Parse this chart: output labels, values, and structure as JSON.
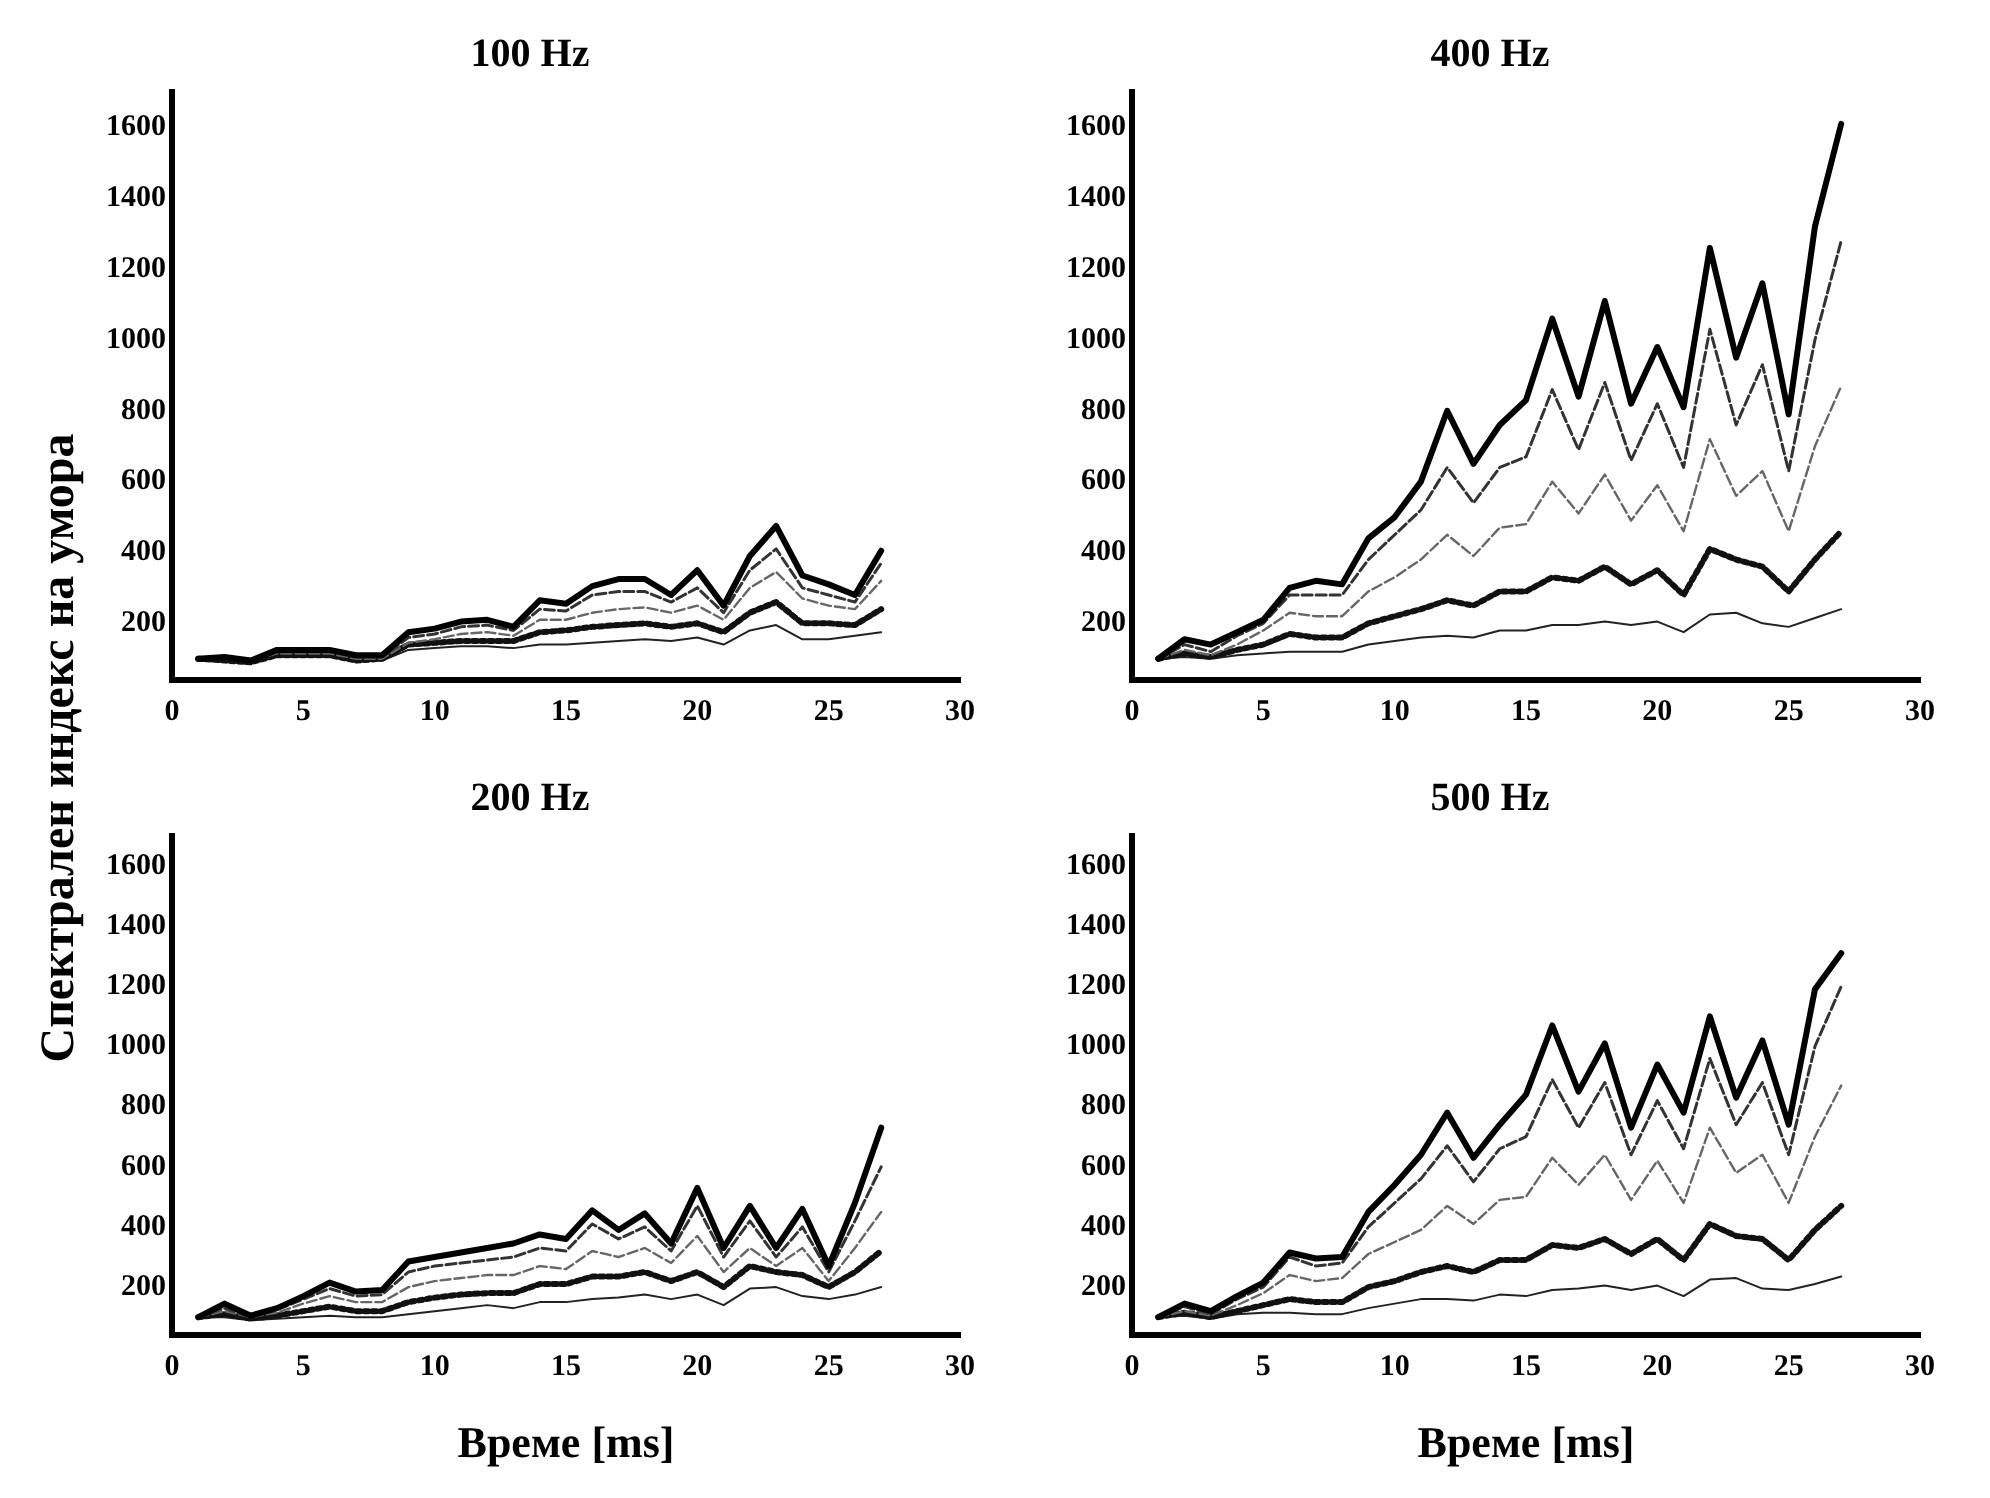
{
  "chart_data": [
    {
      "type": "line",
      "title": "100 Hz",
      "ylabel": "Спектрален индекс на умора",
      "x": [
        1,
        2,
        3,
        4,
        5,
        6,
        7,
        8,
        9,
        10,
        11,
        12,
        13,
        14,
        15,
        16,
        17,
        18,
        19,
        20,
        21,
        22,
        23,
        24,
        25,
        26,
        27
      ],
      "xlim": [
        0,
        30
      ],
      "xticks": [
        0,
        5,
        10,
        15,
        20,
        25,
        30
      ],
      "ylim": [
        40,
        1700
      ],
      "yticks": [
        200,
        400,
        600,
        800,
        1000,
        1200,
        1400,
        1600
      ],
      "grid": false,
      "series": [
        {
          "color": "#000000",
          "line_style": "solid",
          "values": [
            100,
            105,
            95,
            125,
            125,
            125,
            110,
            110,
            175,
            185,
            205,
            210,
            190,
            265,
            255,
            305,
            325,
            325,
            280,
            350,
            250,
            390,
            475,
            335,
            310,
            280,
            405
          ]
        },
        {
          "color": "#333333",
          "line_style": "dashed",
          "values": [
            100,
            100,
            95,
            120,
            120,
            120,
            105,
            105,
            160,
            170,
            190,
            195,
            180,
            240,
            235,
            280,
            290,
            290,
            260,
            300,
            230,
            350,
            410,
            300,
            280,
            260,
            370
          ]
        },
        {
          "color": "#666666",
          "line_style": "dashed",
          "values": [
            100,
            100,
            95,
            115,
            115,
            115,
            100,
            100,
            145,
            155,
            170,
            175,
            165,
            210,
            210,
            230,
            240,
            245,
            230,
            250,
            210,
            300,
            345,
            270,
            250,
            240,
            320
          ]
        },
        {
          "color": "#111111",
          "line_style": "dotted",
          "values": [
            100,
            95,
            90,
            110,
            110,
            110,
            95,
            100,
            140,
            145,
            150,
            150,
            150,
            175,
            180,
            190,
            195,
            200,
            190,
            200,
            175,
            230,
            260,
            200,
            200,
            195,
            240
          ]
        },
        {
          "color": "#222222",
          "line_style": "solid",
          "values": [
            100,
            95,
            90,
            105,
            105,
            105,
            95,
            95,
            125,
            130,
            135,
            135,
            130,
            140,
            140,
            145,
            150,
            155,
            150,
            160,
            140,
            180,
            195,
            155,
            155,
            165,
            175
          ]
        }
      ]
    },
    {
      "type": "line",
      "title": "400 Hz",
      "x": [
        1,
        2,
        3,
        4,
        5,
        6,
        7,
        8,
        9,
        10,
        11,
        12,
        13,
        14,
        15,
        16,
        17,
        18,
        19,
        20,
        21,
        22,
        23,
        24,
        25,
        26,
        27
      ],
      "xlim": [
        0,
        30
      ],
      "xticks": [
        0,
        5,
        10,
        15,
        20,
        25,
        30
      ],
      "ylim": [
        40,
        1700
      ],
      "yticks": [
        200,
        400,
        600,
        800,
        1000,
        1200,
        1400,
        1600
      ],
      "grid": false,
      "series": [
        {
          "color": "#000000",
          "line_style": "solid",
          "values": [
            100,
            155,
            140,
            175,
            210,
            300,
            320,
            310,
            440,
            500,
            600,
            800,
            650,
            760,
            830,
            1060,
            840,
            1110,
            820,
            980,
            810,
            1260,
            950,
            1160,
            790,
            1320,
            1610
          ]
        },
        {
          "color": "#333333",
          "line_style": "dashed",
          "values": [
            100,
            140,
            120,
            165,
            200,
            280,
            280,
            280,
            380,
            450,
            520,
            640,
            540,
            640,
            670,
            860,
            690,
            880,
            660,
            820,
            640,
            1030,
            760,
            930,
            630,
            1000,
            1280
          ]
        },
        {
          "color": "#666666",
          "line_style": "dashed",
          "values": [
            100,
            125,
            110,
            140,
            180,
            230,
            220,
            220,
            290,
            330,
            380,
            450,
            390,
            470,
            480,
            600,
            510,
            620,
            490,
            590,
            460,
            720,
            560,
            630,
            460,
            700,
            870
          ]
        },
        {
          "color": "#111111",
          "line_style": "dotted",
          "values": [
            100,
            115,
            105,
            125,
            140,
            170,
            160,
            160,
            200,
            220,
            240,
            265,
            250,
            290,
            290,
            330,
            320,
            360,
            310,
            350,
            280,
            410,
            380,
            360,
            290,
            380,
            460
          ]
        },
        {
          "color": "#222222",
          "line_style": "solid",
          "values": [
            100,
            105,
            100,
            110,
            115,
            120,
            120,
            120,
            140,
            150,
            160,
            165,
            160,
            180,
            180,
            195,
            195,
            205,
            195,
            205,
            175,
            225,
            230,
            200,
            190,
            215,
            240
          ]
        }
      ]
    },
    {
      "type": "line",
      "title": "200 Hz",
      "xlabel": "Време [ms]",
      "x": [
        1,
        2,
        3,
        4,
        5,
        6,
        7,
        8,
        9,
        10,
        11,
        12,
        13,
        14,
        15,
        16,
        17,
        18,
        19,
        20,
        21,
        22,
        23,
        24,
        25,
        26,
        27
      ],
      "xlim": [
        0,
        30
      ],
      "xticks": [
        0,
        5,
        10,
        15,
        20,
        25,
        30
      ],
      "ylim": [
        40,
        1700
      ],
      "yticks": [
        200,
        400,
        600,
        800,
        1000,
        1200,
        1400,
        1600
      ],
      "grid": false,
      "series": [
        {
          "color": "#000000",
          "line_style": "solid",
          "values": [
            100,
            145,
            105,
            130,
            170,
            215,
            185,
            190,
            285,
            300,
            315,
            330,
            345,
            375,
            360,
            455,
            390,
            445,
            345,
            530,
            330,
            470,
            330,
            460,
            270,
            480,
            730
          ]
        },
        {
          "color": "#333333",
          "line_style": "dashed",
          "values": [
            100,
            130,
            100,
            125,
            160,
            195,
            170,
            175,
            250,
            270,
            280,
            290,
            300,
            330,
            320,
            410,
            360,
            400,
            320,
            470,
            300,
            420,
            300,
            400,
            250,
            420,
            600
          ]
        },
        {
          "color": "#666666",
          "line_style": "dashed",
          "values": [
            100,
            120,
            100,
            115,
            145,
            170,
            150,
            150,
            200,
            220,
            230,
            240,
            240,
            270,
            260,
            320,
            300,
            330,
            280,
            370,
            250,
            330,
            270,
            330,
            220,
            330,
            450
          ]
        },
        {
          "color": "#111111",
          "line_style": "dotted",
          "values": [
            100,
            110,
            95,
            105,
            120,
            135,
            120,
            120,
            150,
            165,
            175,
            180,
            180,
            210,
            210,
            235,
            235,
            250,
            220,
            250,
            200,
            270,
            250,
            240,
            200,
            250,
            320
          ]
        },
        {
          "color": "#222222",
          "line_style": "solid",
          "values": [
            100,
            100,
            90,
            95,
            100,
            105,
            100,
            100,
            110,
            120,
            130,
            140,
            130,
            150,
            150,
            160,
            165,
            175,
            160,
            175,
            140,
            195,
            200,
            170,
            160,
            175,
            200
          ]
        }
      ]
    },
    {
      "type": "line",
      "title": "500 Hz",
      "xlabel": "Време [ms]",
      "x": [
        1,
        2,
        3,
        4,
        5,
        6,
        7,
        8,
        9,
        10,
        11,
        12,
        13,
        14,
        15,
        16,
        17,
        18,
        19,
        20,
        21,
        22,
        23,
        24,
        25,
        26,
        27
      ],
      "xlim": [
        0,
        30
      ],
      "xticks": [
        0,
        5,
        10,
        15,
        20,
        25,
        30
      ],
      "ylim": [
        40,
        1700
      ],
      "yticks": [
        200,
        400,
        600,
        800,
        1000,
        1200,
        1400,
        1600
      ],
      "grid": false,
      "series": [
        {
          "color": "#000000",
          "line_style": "solid",
          "values": [
            100,
            145,
            120,
            170,
            215,
            315,
            295,
            300,
            450,
            540,
            640,
            780,
            630,
            740,
            840,
            1070,
            850,
            1010,
            730,
            940,
            780,
            1100,
            830,
            1020,
            740,
            1190,
            1310
          ]
        },
        {
          "color": "#333333",
          "line_style": "dashed",
          "values": [
            100,
            135,
            110,
            160,
            200,
            300,
            270,
            280,
            400,
            480,
            560,
            670,
            550,
            660,
            700,
            890,
            730,
            880,
            640,
            820,
            660,
            960,
            740,
            880,
            640,
            1000,
            1200
          ]
        },
        {
          "color": "#666666",
          "line_style": "dashed",
          "values": [
            100,
            120,
            105,
            140,
            180,
            240,
            220,
            230,
            310,
            350,
            390,
            470,
            410,
            490,
            500,
            630,
            540,
            640,
            490,
            620,
            480,
            730,
            580,
            640,
            480,
            700,
            870
          ]
        },
        {
          "color": "#111111",
          "line_style": "dotted",
          "values": [
            100,
            115,
            100,
            120,
            140,
            160,
            150,
            150,
            200,
            220,
            250,
            270,
            250,
            290,
            290,
            340,
            330,
            360,
            310,
            360,
            290,
            410,
            370,
            360,
            290,
            390,
            470
          ]
        },
        {
          "color": "#222222",
          "line_style": "solid",
          "values": [
            100,
            105,
            95,
            110,
            115,
            115,
            110,
            110,
            130,
            145,
            160,
            160,
            155,
            175,
            170,
            190,
            195,
            205,
            190,
            205,
            170,
            225,
            230,
            195,
            190,
            210,
            235
          ]
        }
      ]
    }
  ]
}
